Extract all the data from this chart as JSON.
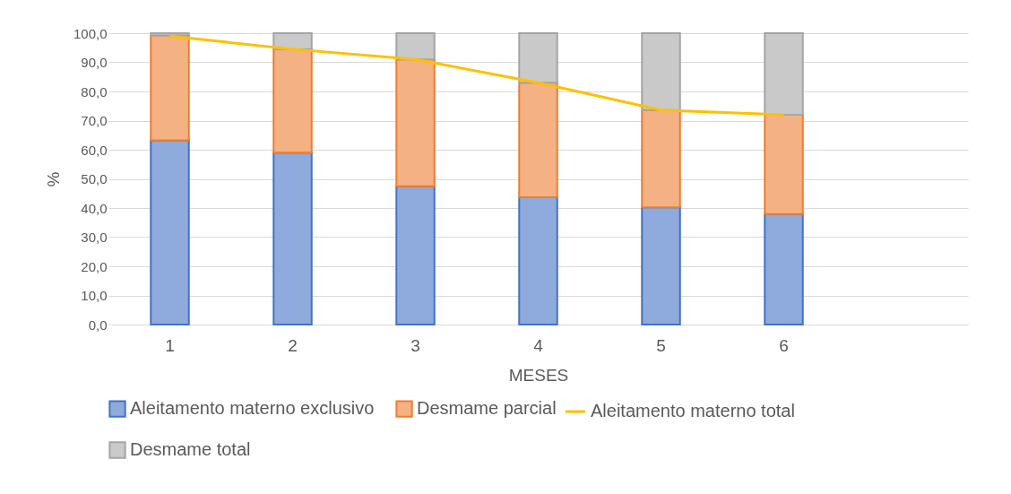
{
  "chart_data": {
    "type": "bar",
    "stacked": true,
    "xlabel": "MESES",
    "ylabel": "%",
    "categories": [
      "1",
      "2",
      "3",
      "4",
      "5",
      "6",
      null
    ],
    "series": [
      {
        "name": "Aleitamento materno exclusivo",
        "color": "#8faadc",
        "values": [
          63.2,
          59.0,
          47.5,
          43.7,
          40.2,
          37.9,
          null
        ]
      },
      {
        "name": "Desmame parcial",
        "color": "#f4b183",
        "values": [
          36.0,
          35.5,
          43.5,
          39.3,
          33.4,
          34.1,
          null
        ]
      },
      {
        "name": "Desmame total",
        "color": "#c9c9c9",
        "values": [
          0.8,
          5.5,
          9.0,
          17.0,
          26.4,
          28.0,
          null
        ]
      },
      {
        "name": "Aleitamento materno total",
        "type": "line",
        "color": "#ffc000",
        "values": [
          99.0,
          94.5,
          91.0,
          83.0,
          73.6,
          72.0,
          null
        ]
      }
    ],
    "ylim": [
      0,
      100
    ],
    "yticks": [
      {
        "value": 0,
        "label": "0,0"
      },
      {
        "value": 10,
        "label": "10,0"
      },
      {
        "value": 20,
        "label": "20,0"
      },
      {
        "value": 30,
        "label": "30,0"
      },
      {
        "value": 40,
        "label": "40,0"
      },
      {
        "value": 50,
        "label": "50,0"
      },
      {
        "value": 60,
        "label": "60,0"
      },
      {
        "value": 70,
        "label": "70,0"
      },
      {
        "value": 80,
        "label": "80,0"
      },
      {
        "value": 90,
        "label": "90,0"
      },
      {
        "value": 100,
        "label": "100,0"
      }
    ],
    "grid": "y",
    "legend": "bottom"
  }
}
